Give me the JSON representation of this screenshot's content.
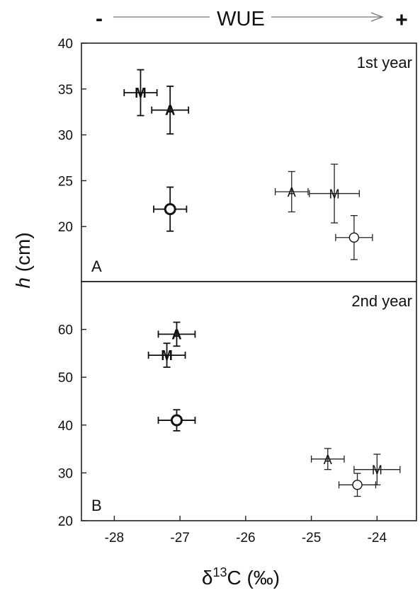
{
  "chart_data": {
    "type": "scatter",
    "wue_annotation": {
      "minus": "-",
      "label": "WUE",
      "plus": "+"
    },
    "x_axis": {
      "label_delta": "δ",
      "label_superscript": "13",
      "label_rest": "C (‰)",
      "xlim": [
        -28.5,
        -23.4
      ],
      "ticks": [
        -28,
        -27,
        -26,
        -25,
        -24
      ],
      "tick_labels": [
        "-28",
        "-27",
        "-26",
        "-25",
        "-24"
      ]
    },
    "y_axis": {
      "label_italic": "h",
      "label_rest": " (cm)"
    },
    "panels": [
      {
        "letter": "A",
        "year_label": "1st year",
        "ylim": [
          14,
          40
        ],
        "yticks": [
          20,
          25,
          30,
          35,
          40
        ],
        "ytick_labels": [
          "20",
          "25",
          "30",
          "35",
          "40"
        ],
        "points": [
          {
            "marker": "M",
            "bold": true,
            "x": -27.6,
            "y": 34.6,
            "xerr": 0.25,
            "yerr": 2.5
          },
          {
            "marker": "A",
            "bold": true,
            "x": -27.15,
            "y": 32.7,
            "xerr": 0.28,
            "yerr": 2.6
          },
          {
            "marker": "O",
            "bold": true,
            "x": -27.15,
            "y": 21.9,
            "xerr": 0.25,
            "yerr": 2.4
          },
          {
            "marker": "A",
            "bold": false,
            "x": -25.3,
            "y": 23.8,
            "xerr": 0.25,
            "yerr": 2.2
          },
          {
            "marker": "M",
            "bold": false,
            "x": -24.65,
            "y": 23.6,
            "xerr": 0.38,
            "yerr": 3.2
          },
          {
            "marker": "O",
            "bold": false,
            "x": -24.35,
            "y": 18.8,
            "xerr": 0.28,
            "yerr": 2.4
          }
        ]
      },
      {
        "letter": "B",
        "year_label": "2nd year",
        "ylim": [
          20,
          70
        ],
        "yticks": [
          20,
          30,
          40,
          50,
          60
        ],
        "ytick_labels": [
          "20",
          "30",
          "40",
          "50",
          "60"
        ],
        "points": [
          {
            "marker": "A",
            "bold": true,
            "x": -27.05,
            "y": 59.0,
            "xerr": 0.28,
            "yerr": 2.5
          },
          {
            "marker": "M",
            "bold": true,
            "x": -27.2,
            "y": 54.6,
            "xerr": 0.28,
            "yerr": 2.5
          },
          {
            "marker": "O",
            "bold": true,
            "x": -27.05,
            "y": 41.0,
            "xerr": 0.28,
            "yerr": 2.2
          },
          {
            "marker": "A",
            "bold": false,
            "x": -24.75,
            "y": 32.9,
            "xerr": 0.25,
            "yerr": 2.2
          },
          {
            "marker": "M",
            "bold": false,
            "x": -24.0,
            "y": 30.7,
            "xerr": 0.35,
            "yerr": 3.2
          },
          {
            "marker": "O",
            "bold": false,
            "x": -24.3,
            "y": 27.5,
            "xerr": 0.28,
            "yerr": 2.4
          }
        ]
      }
    ]
  }
}
